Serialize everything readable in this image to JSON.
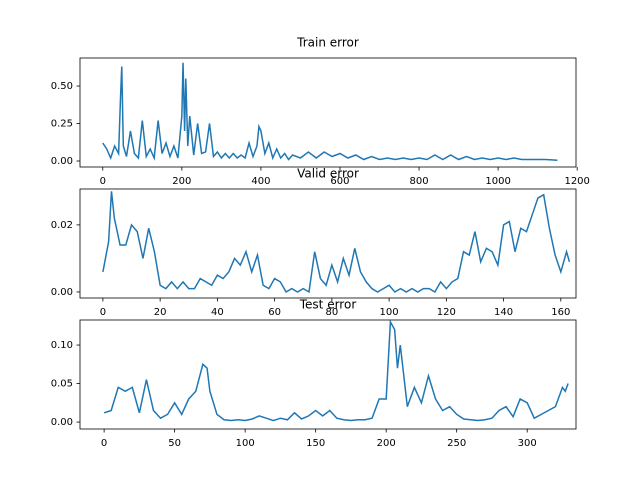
{
  "chart_data": [
    {
      "type": "line",
      "title": "Train error",
      "color": "#1f77b4",
      "x": [
        0,
        10,
        20,
        30,
        40,
        45,
        48,
        52,
        60,
        70,
        80,
        90,
        100,
        110,
        120,
        130,
        140,
        150,
        160,
        170,
        180,
        190,
        200,
        203,
        207,
        210,
        215,
        220,
        230,
        240,
        250,
        260,
        270,
        280,
        290,
        300,
        310,
        320,
        330,
        340,
        350,
        360,
        370,
        380,
        390,
        395,
        400,
        410,
        420,
        430,
        440,
        450,
        460,
        470,
        480,
        500,
        520,
        540,
        560,
        580,
        600,
        620,
        640,
        660,
        680,
        700,
        720,
        740,
        760,
        780,
        800,
        820,
        840,
        860,
        880,
        900,
        920,
        940,
        960,
        980,
        1000,
        1020,
        1040,
        1060,
        1080,
        1100,
        1120,
        1150
      ],
      "values": [
        0.12,
        0.08,
        0.02,
        0.1,
        0.05,
        0.43,
        0.63,
        0.1,
        0.03,
        0.2,
        0.05,
        0.02,
        0.27,
        0.03,
        0.08,
        0.02,
        0.27,
        0.05,
        0.12,
        0.03,
        0.1,
        0.02,
        0.3,
        0.655,
        0.2,
        0.55,
        0.1,
        0.3,
        0.04,
        0.25,
        0.05,
        0.06,
        0.25,
        0.03,
        0.06,
        0.02,
        0.05,
        0.02,
        0.05,
        0.02,
        0.04,
        0.02,
        0.12,
        0.03,
        0.1,
        0.23,
        0.2,
        0.05,
        0.12,
        0.02,
        0.08,
        0.02,
        0.05,
        0.01,
        0.04,
        0.02,
        0.06,
        0.02,
        0.06,
        0.03,
        0.05,
        0.02,
        0.04,
        0.01,
        0.03,
        0.01,
        0.02,
        0.01,
        0.02,
        0.01,
        0.02,
        0.01,
        0.04,
        0.01,
        0.04,
        0.01,
        0.03,
        0.01,
        0.02,
        0.01,
        0.02,
        0.01,
        0.02,
        0.01,
        0.01,
        0.01,
        0.01,
        0.005
      ],
      "xlim": [
        -57.6,
        1197
      ],
      "ylim": [
        -0.04,
        0.687
      ],
      "xticks": [
        0,
        200,
        400,
        600,
        800,
        1000,
        1200
      ],
      "yticks": [
        {
          "value": 0,
          "label": "0.00"
        },
        {
          "value": 0.25,
          "label": "0.25"
        },
        {
          "value": 0.5,
          "label": "0.50"
        }
      ]
    },
    {
      "type": "line",
      "title": "Valid error",
      "color": "#1f77b4",
      "x": [
        0,
        2,
        3,
        4,
        6,
        8,
        10,
        12,
        14,
        16,
        18,
        20,
        22,
        24,
        26,
        28,
        30,
        32,
        34,
        36,
        38,
        40,
        42,
        44,
        46,
        48,
        50,
        52,
        54,
        56,
        58,
        60,
        62,
        64,
        66,
        68,
        70,
        72,
        74,
        76,
        78,
        80,
        82,
        84,
        86,
        88,
        90,
        92,
        94,
        96,
        98,
        100,
        102,
        104,
        106,
        108,
        110,
        112,
        114,
        116,
        118,
        120,
        122,
        124,
        126,
        128,
        130,
        132,
        134,
        136,
        138,
        140,
        142,
        144,
        146,
        148,
        150,
        152,
        154,
        156,
        158,
        160,
        162,
        163
      ],
      "values": [
        0.006,
        0.015,
        0.03,
        0.022,
        0.014,
        0.014,
        0.02,
        0.018,
        0.01,
        0.019,
        0.012,
        0.002,
        0.001,
        0.003,
        0.001,
        0.003,
        0.001,
        0.001,
        0.004,
        0.003,
        0.002,
        0.005,
        0.004,
        0.006,
        0.01,
        0.008,
        0.012,
        0.006,
        0.011,
        0.002,
        0.001,
        0.004,
        0.003,
        0.0,
        0.001,
        0.0,
        0.001,
        0.0,
        0.012,
        0.004,
        0.002,
        0.008,
        0.003,
        0.01,
        0.005,
        0.013,
        0.006,
        0.003,
        0.001,
        0.0,
        0.001,
        0.002,
        0.0,
        0.001,
        0.0,
        0.001,
        0.0,
        0.001,
        0.001,
        0.0,
        0.003,
        0.001,
        0.003,
        0.004,
        0.012,
        0.011,
        0.018,
        0.009,
        0.013,
        0.012,
        0.008,
        0.02,
        0.021,
        0.012,
        0.019,
        0.018,
        0.023,
        0.028,
        0.029,
        0.019,
        0.011,
        0.006,
        0.012,
        0.009
      ],
      "xlim": [
        -8,
        165.3
      ],
      "ylim": [
        -0.0018,
        0.0307
      ],
      "xticks": [
        0,
        20,
        40,
        60,
        80,
        100,
        120,
        140,
        160
      ],
      "yticks": [
        {
          "value": 0,
          "label": "0.00"
        },
        {
          "value": 0.02,
          "label": "0.02"
        }
      ]
    },
    {
      "type": "line",
      "title": "Test error",
      "color": "#1f77b4",
      "x": [
        0,
        5,
        10,
        15,
        20,
        25,
        30,
        35,
        40,
        45,
        50,
        55,
        60,
        65,
        70,
        73,
        75,
        80,
        85,
        90,
        95,
        100,
        105,
        110,
        115,
        120,
        125,
        130,
        135,
        140,
        145,
        150,
        155,
        160,
        165,
        170,
        175,
        180,
        185,
        190,
        195,
        200,
        203,
        206,
        208,
        210,
        215,
        220,
        225,
        230,
        235,
        240,
        245,
        250,
        255,
        260,
        265,
        270,
        275,
        280,
        285,
        290,
        295,
        300,
        305,
        310,
        315,
        320,
        325,
        327,
        329
      ],
      "values": [
        0.012,
        0.015,
        0.045,
        0.04,
        0.045,
        0.012,
        0.055,
        0.015,
        0.005,
        0.01,
        0.025,
        0.01,
        0.03,
        0.04,
        0.075,
        0.07,
        0.04,
        0.01,
        0.003,
        0.002,
        0.003,
        0.002,
        0.004,
        0.008,
        0.005,
        0.002,
        0.005,
        0.003,
        0.012,
        0.004,
        0.008,
        0.015,
        0.008,
        0.015,
        0.005,
        0.003,
        0.002,
        0.003,
        0.003,
        0.005,
        0.03,
        0.03,
        0.13,
        0.12,
        0.07,
        0.1,
        0.02,
        0.045,
        0.025,
        0.06,
        0.03,
        0.015,
        0.02,
        0.01,
        0.004,
        0.003,
        0.002,
        0.003,
        0.005,
        0.015,
        0.02,
        0.007,
        0.03,
        0.025,
        0.005,
        0.01,
        0.015,
        0.02,
        0.045,
        0.04,
        0.05
      ],
      "xlim": [
        -17.1,
        334.6
      ],
      "ylim": [
        -0.009,
        0.1325
      ],
      "xticks": [
        0,
        50,
        100,
        150,
        200,
        250,
        300
      ],
      "yticks": [
        {
          "value": 0,
          "label": "0.00"
        },
        {
          "value": 0.05,
          "label": "0.05"
        },
        {
          "value": 0.1,
          "label": "0.10"
        }
      ]
    }
  ]
}
